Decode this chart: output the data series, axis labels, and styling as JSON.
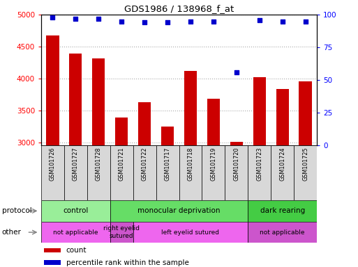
{
  "title": "GDS1986 / 138968_f_at",
  "samples": [
    "GSM101726",
    "GSM101727",
    "GSM101728",
    "GSM101721",
    "GSM101722",
    "GSM101717",
    "GSM101718",
    "GSM101719",
    "GSM101720",
    "GSM101723",
    "GSM101724",
    "GSM101725"
  ],
  "counts": [
    4670,
    4390,
    4310,
    3390,
    3625,
    3250,
    4115,
    3680,
    3010,
    4020,
    3840,
    3960
  ],
  "percentile_ranks": [
    98,
    97,
    97,
    95,
    94,
    94,
    95,
    95,
    56,
    96,
    95,
    95
  ],
  "ylim_left": [
    2950,
    5000
  ],
  "ylim_right": [
    0,
    100
  ],
  "yticks_left": [
    3000,
    3500,
    4000,
    4500,
    5000
  ],
  "yticks_right": [
    0,
    25,
    50,
    75,
    100
  ],
  "bar_color": "#cc0000",
  "dot_color": "#0000cc",
  "protocol_groups": [
    {
      "label": "control",
      "start": 0,
      "end": 3,
      "color": "#99ee99"
    },
    {
      "label": "monocular deprivation",
      "start": 3,
      "end": 9,
      "color": "#66dd66"
    },
    {
      "label": "dark rearing",
      "start": 9,
      "end": 12,
      "color": "#44cc44"
    }
  ],
  "other_groups": [
    {
      "label": "not applicable",
      "start": 0,
      "end": 3,
      "color": "#ee66ee"
    },
    {
      "label": "right eyelid\nsutured",
      "start": 3,
      "end": 4,
      "color": "#cc55cc"
    },
    {
      "label": "left eyelid sutured",
      "start": 4,
      "end": 9,
      "color": "#ee66ee"
    },
    {
      "label": "not applicable",
      "start": 9,
      "end": 12,
      "color": "#cc55cc"
    }
  ],
  "background_color": "#ffffff",
  "grid_color": "#aaaaaa",
  "label_row_left": "protocol",
  "label_row_left2": "other",
  "legend_count_color": "#cc0000",
  "legend_pct_color": "#0000cc",
  "legend_count_label": "count",
  "legend_pct_label": "percentile rank within the sample"
}
